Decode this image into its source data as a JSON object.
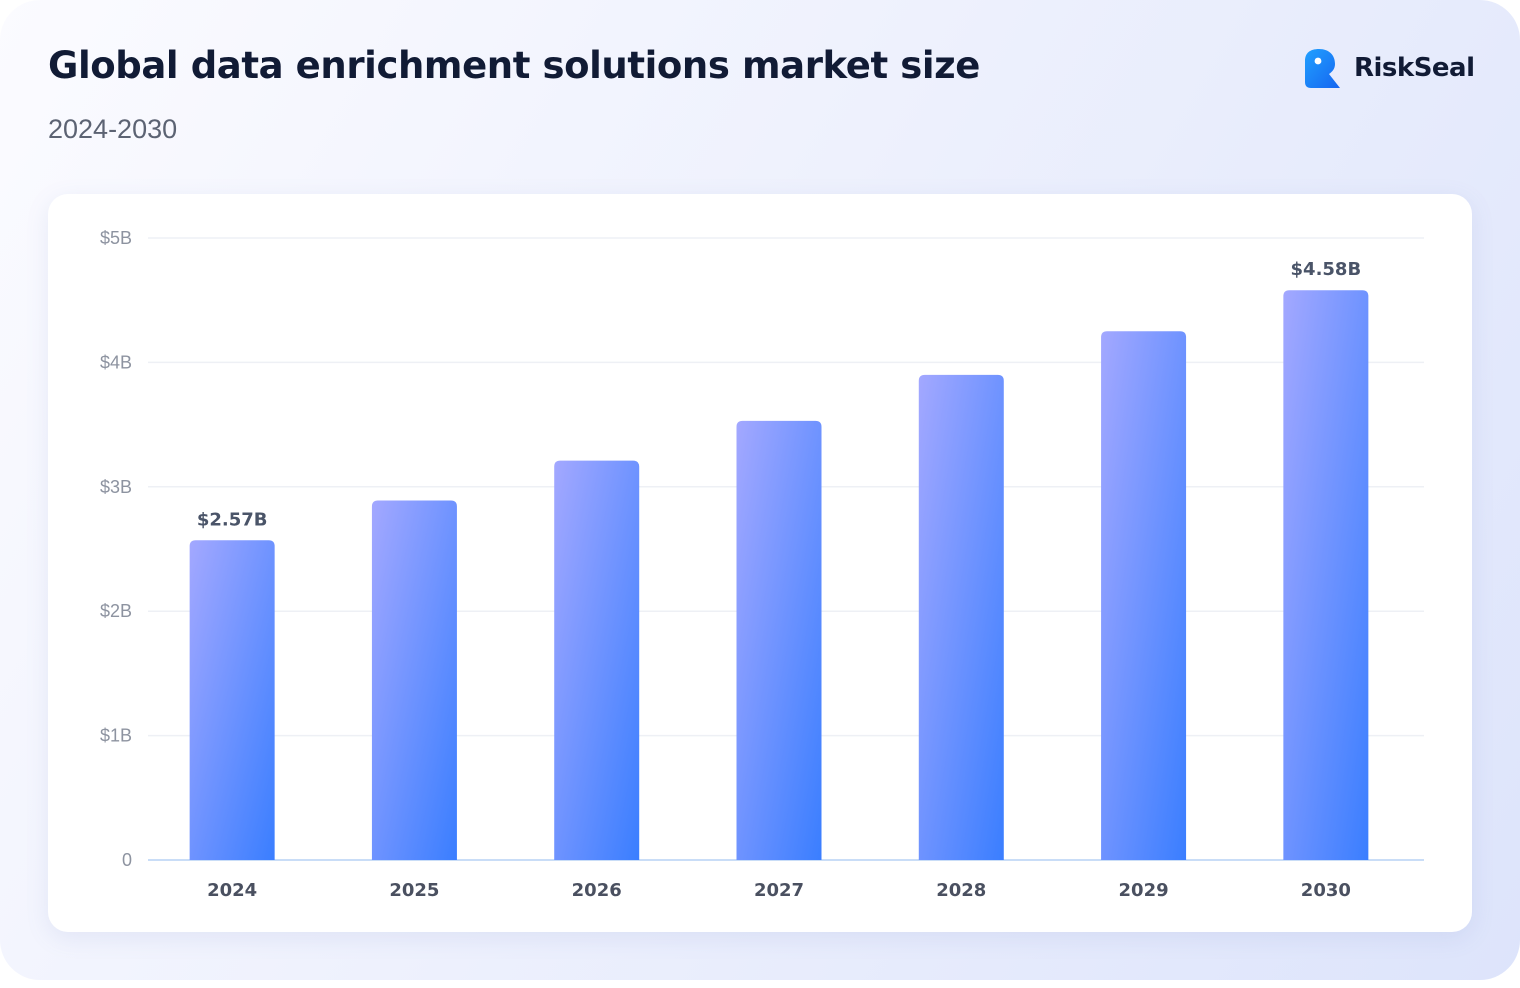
{
  "header": {
    "title": "Global data enrichment solutions market size",
    "subtitle": "2024-2030"
  },
  "brand": {
    "name": "RiskSeal",
    "logo_icon": "riskseal-logo-icon",
    "logo_color": "#1e88ff"
  },
  "colors": {
    "bar_gradient_start": "#a3a8ff",
    "bar_gradient_end": "#3a7eff",
    "grid": "#eef0f5",
    "baseline": "#c9ddf7"
  },
  "chart_data": {
    "type": "bar",
    "title": "Global data enrichment solutions market size",
    "subtitle": "2024-2030",
    "categories": [
      "2024",
      "2025",
      "2026",
      "2027",
      "2028",
      "2029",
      "2030"
    ],
    "values": [
      2.57,
      2.89,
      3.21,
      3.53,
      3.9,
      4.25,
      4.58
    ],
    "units": "USD billions",
    "ylim": [
      0,
      5
    ],
    "yticks": [
      0,
      1,
      2,
      3,
      4,
      5
    ],
    "ytick_labels": [
      "0",
      "$1B",
      "$2B",
      "$3B",
      "$4B",
      "$5B"
    ],
    "data_labels": [
      {
        "category": "2024",
        "text": "$2.57B"
      },
      {
        "category": "2030",
        "text": "$4.58B"
      }
    ],
    "grid": true,
    "legend": "none"
  }
}
